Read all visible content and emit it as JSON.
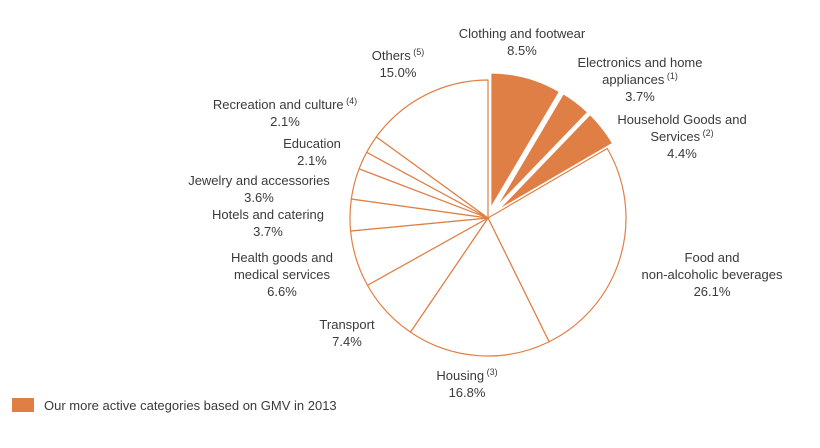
{
  "chart_data": {
    "type": "pie",
    "start_angle_deg": 0,
    "direction": "clockwise",
    "slices": [
      {
        "name": "Clothing and footwear",
        "note": "",
        "value": 8.5,
        "value_label": "8.5%",
        "highlighted": true
      },
      {
        "name": "Electronics and home appliances",
        "note": "(1)",
        "value": 3.7,
        "value_label": "3.7%",
        "highlighted": true
      },
      {
        "name": "Household Goods and Services",
        "note": "(2)",
        "value": 4.4,
        "value_label": "4.4%",
        "highlighted": true
      },
      {
        "name": "Food and non-alcoholic beverages",
        "note": "",
        "value": 26.1,
        "value_label": "26.1%",
        "highlighted": false
      },
      {
        "name": "Housing",
        "note": "(3)",
        "value": 16.8,
        "value_label": "16.8%",
        "highlighted": false
      },
      {
        "name": "Transport",
        "note": "",
        "value": 7.4,
        "value_label": "7.4%",
        "highlighted": false
      },
      {
        "name": "Health goods and medical services",
        "note": "",
        "value": 6.6,
        "value_label": "6.6%",
        "highlighted": false
      },
      {
        "name": "Hotels and catering",
        "note": "",
        "value": 3.7,
        "value_label": "3.7%",
        "highlighted": false
      },
      {
        "name": "Jewelry and accessories",
        "note": "",
        "value": 3.6,
        "value_label": "3.6%",
        "highlighted": false
      },
      {
        "name": "Education",
        "note": "",
        "value": 2.1,
        "value_label": "2.1%",
        "highlighted": false
      },
      {
        "name": "Recreation and culture",
        "note": "(4)",
        "value": 2.1,
        "value_label": "2.1%",
        "highlighted": false
      },
      {
        "name": "Others",
        "note": "(5)",
        "value": 15.0,
        "value_label": "15.0%",
        "highlighted": false
      }
    ],
    "colors": {
      "highlight": "#e07f45",
      "outline": "#e07f45",
      "background": "#ffffff"
    },
    "legend": {
      "position": "bottom-left",
      "label": "Our more active categories based on GMV in 2013",
      "color": "#e07f45"
    }
  }
}
